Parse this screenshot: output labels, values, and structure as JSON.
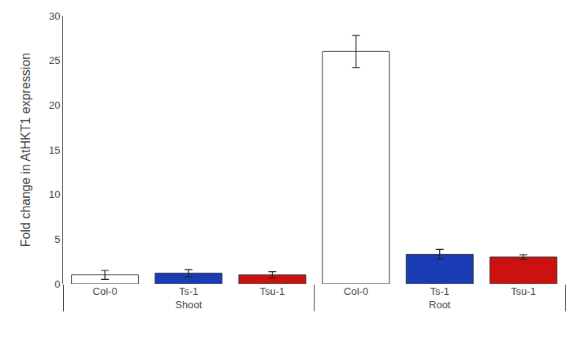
{
  "chart_data": {
    "type": "bar",
    "categories": [
      "Col-0",
      "Ts-1",
      "Tsu-1"
    ],
    "series": [
      {
        "name": "Shoot",
        "values": [
          1.0,
          1.2,
          1.0
        ],
        "errors": [
          0.5,
          0.4,
          0.35
        ]
      },
      {
        "name": "Root",
        "values": [
          26.0,
          3.3,
          3.0
        ],
        "errors": [
          1.8,
          0.55,
          0.25
        ]
      }
    ],
    "colors": [
      "#ffffff",
      "#1a3db5",
      "#cc1111"
    ],
    "ylabel": "Fold change in AtHKT1 expression",
    "ylim": [
      0,
      30
    ],
    "yticks": [
      0,
      5,
      10,
      15,
      20,
      25,
      30
    ],
    "grid": false
  }
}
